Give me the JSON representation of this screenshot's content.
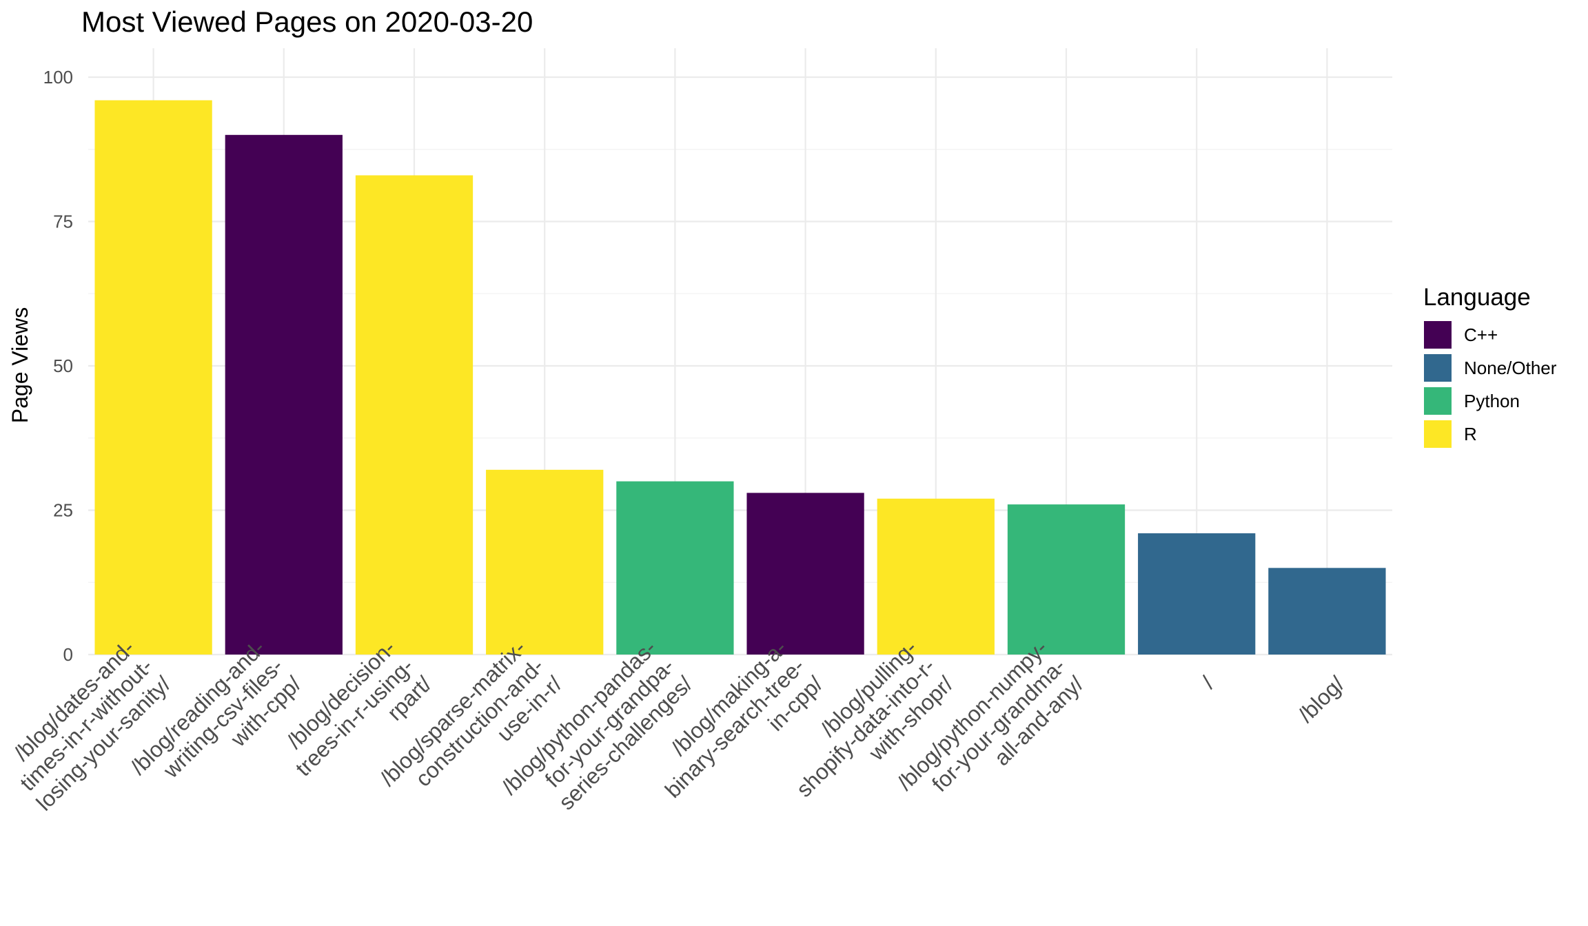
{
  "chart_data": {
    "type": "bar",
    "title": "Most Viewed Pages on 2020-03-20",
    "xlabel": "",
    "ylabel": "Page Views",
    "ylim": [
      0,
      100
    ],
    "yticks": [
      "0",
      "25",
      "50",
      "75",
      "100"
    ],
    "grid": true,
    "legend_title": "Language",
    "legend_position": "right",
    "legend": [
      {
        "name": "C++",
        "color": "#440154"
      },
      {
        "name": "None/Other",
        "color": "#31688e"
      },
      {
        "name": "Python",
        "color": "#35b779"
      },
      {
        "name": "R",
        "color": "#fde725"
      }
    ],
    "categories": [
      "/blog/dates-and-times-in-r-without-losing-your-sanity/",
      "/blog/reading-and-writing-csv-files-with-cpp/",
      "/blog/decision-trees-in-r-using-rpart/",
      "/blog/sparse-matrix-construction-and-use-in-r/",
      "/blog/python-pandas-for-your-grandpa-series-challenges/",
      "/blog/making-a-binary-search-tree-in-cpp/",
      "/blog/pulling-shopify-data-into-r-with-shopr/",
      "/blog/python-numpy-for-your-grandma-all-and-any/",
      "/",
      "/blog/"
    ],
    "category_lines": [
      [
        "/blog/dates-and-",
        "times-in-r-without-",
        "losing-your-sanity/"
      ],
      [
        "/blog/reading-and-",
        "writing-csv-files-",
        "with-cpp/"
      ],
      [
        "/blog/decision-",
        "trees-in-r-using-",
        "rpart/"
      ],
      [
        "/blog/sparse-matrix-",
        "construction-and-",
        "use-in-r/"
      ],
      [
        "/blog/python-pandas-",
        "for-your-grandpa-",
        "series-challenges/"
      ],
      [
        "/blog/making-a-",
        "binary-search-tree-",
        "in-cpp/"
      ],
      [
        "/blog/pulling-",
        "shopify-data-into-r-",
        "with-shopr/"
      ],
      [
        "/blog/python-numpy-",
        "for-your-grandma-",
        "all-and-any/"
      ],
      [
        "/"
      ],
      [
        "/blog/"
      ]
    ],
    "values": [
      96,
      90,
      83,
      32,
      30,
      28,
      27,
      26,
      21,
      15
    ],
    "language": [
      "R",
      "C++",
      "R",
      "R",
      "Python",
      "C++",
      "R",
      "Python",
      "None/Other",
      "None/Other"
    ]
  }
}
